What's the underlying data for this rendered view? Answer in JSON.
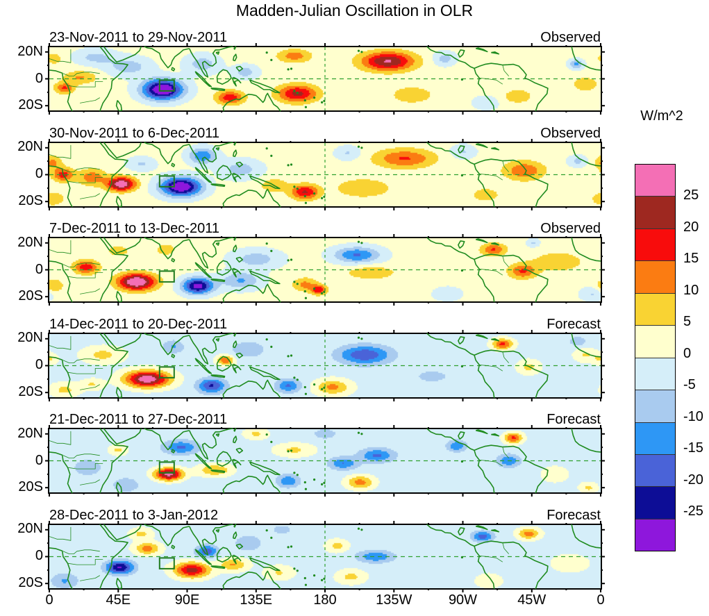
{
  "title": "Madden-Julian Oscillation in OLR",
  "colorbar": {
    "label": "W/m^2",
    "tick_labels": [
      "25",
      "20",
      "15",
      "10",
      "5",
      "0",
      "-5",
      "-10",
      "-15",
      "-20",
      "-25"
    ],
    "palette_low_to_high": [
      "#8E17DC",
      "#0D0D96",
      "#4A63D8",
      "#2E97F5",
      "#A9CBEF",
      "#D5EEF9",
      "#FFFFCE",
      "#F9D333",
      "#FB7C12",
      "#F80C0C",
      "#9E2820",
      "#F46FB5"
    ],
    "level_step": 5
  },
  "axes": {
    "x_tick_labels": [
      "0",
      "45E",
      "90E",
      "135E",
      "180",
      "135W",
      "90W",
      "45W",
      "0"
    ],
    "x_tick_lons": [
      0,
      45,
      90,
      135,
      180,
      225,
      270,
      315,
      360
    ],
    "y_tick_labels": [
      "20N",
      "0",
      "20S"
    ],
    "y_tick_lats": [
      20,
      0,
      -20
    ]
  },
  "map": {
    "coast_color": "#1F8B1F",
    "grid_color": "#2FA02F",
    "region_box": {
      "lon_min": 72,
      "lon_max": 81.5,
      "lat_min": -9,
      "lat_max": -1
    }
  },
  "chart_data": {
    "type": "heatmap",
    "units": "W/m^2",
    "lon_range": [
      0,
      360
    ],
    "lat_range": [
      -23.5,
      23.5
    ],
    "levels": [
      -25,
      -20,
      -15,
      -10,
      -5,
      0,
      5,
      10,
      15,
      20,
      25
    ],
    "anomaly_format": "lon_degE, lat_degN, peak_W_per_m2, rx_deg, ry_deg",
    "panels": [
      {
        "date_range": "23-Nov-2011 to 29-Nov-2011",
        "source": "Observed",
        "base": 1.5,
        "anomalies": [
          [
            74,
            -8,
            -34,
            13,
            7.5
          ],
          [
            52,
            9,
            -9,
            14,
            7
          ],
          [
            100,
            11,
            -9,
            11,
            7
          ],
          [
            128,
            5,
            -9,
            8,
            5
          ],
          [
            118,
            -14,
            17,
            9,
            5
          ],
          [
            162,
            -11,
            20,
            13,
            6.5
          ],
          [
            160,
            17,
            11,
            11,
            5
          ],
          [
            221,
            13,
            24,
            17,
            7
          ],
          [
            237,
            -12,
            8,
            13,
            6
          ],
          [
            10,
            -7,
            14,
            6,
            4
          ],
          [
            20,
            1,
            9,
            11,
            5
          ],
          [
            3,
            15,
            8,
            5,
            4
          ],
          [
            30,
            16,
            -8,
            13,
            6
          ],
          [
            258,
            15,
            -9,
            7,
            5
          ],
          [
            306,
            -13,
            8,
            9,
            5
          ],
          [
            344,
            11,
            -13,
            4.5,
            3.5
          ],
          [
            350,
            -4,
            8,
            8,
            5
          ],
          [
            285,
            -18,
            -6,
            8,
            5
          ]
        ]
      },
      {
        "date_range": "30-Nov-2011 to 6-Dec-2011",
        "source": "Observed",
        "base": 1.5,
        "anomalies": [
          [
            47,
            -7,
            29,
            9,
            5
          ],
          [
            28,
            -2,
            12,
            9,
            6
          ],
          [
            9,
            0,
            16,
            7,
            5
          ],
          [
            2,
            9,
            10,
            6,
            5
          ],
          [
            2,
            -18,
            8,
            8,
            5
          ],
          [
            86,
            -9,
            -33,
            13,
            7
          ],
          [
            100,
            14,
            -16,
            9,
            6
          ],
          [
            125,
            4,
            -9,
            13,
            7
          ],
          [
            167,
            -13,
            19,
            9,
            5.5
          ],
          [
            147,
            -8,
            8,
            9,
            5
          ],
          [
            232,
            12,
            14,
            19,
            7
          ],
          [
            205,
            -10,
            8,
            18,
            7
          ],
          [
            310,
            3,
            13,
            13,
            7
          ],
          [
            270,
            17,
            -7,
            8,
            5
          ],
          [
            195,
            16,
            -7,
            8,
            5
          ],
          [
            345,
            10,
            -8,
            6,
            4
          ],
          [
            285,
            -15,
            7,
            9,
            5
          ],
          [
            60,
            8,
            -7,
            9,
            5
          ]
        ]
      },
      {
        "date_range": "7-Dec-2011 to 13-Dec-2011",
        "source": "Observed",
        "base": 1.5,
        "anomalies": [
          [
            57,
            -9,
            31,
            12,
            6
          ],
          [
            24,
            2,
            17,
            8,
            5
          ],
          [
            3,
            -12,
            9,
            6,
            5
          ],
          [
            76,
            15,
            8,
            6,
            4
          ],
          [
            97,
            -12,
            -29,
            10,
            6
          ],
          [
            125,
            -8,
            -12,
            13,
            6.5
          ],
          [
            135,
            8,
            -9,
            16,
            7
          ],
          [
            176,
            -15,
            17,
            5,
            3.5
          ],
          [
            167,
            -11,
            10,
            8,
            5
          ],
          [
            201,
            11,
            -17,
            15,
            6
          ],
          [
            210,
            -2,
            8,
            16,
            5
          ],
          [
            290,
            15,
            14,
            8,
            4.5
          ],
          [
            309,
            -1,
            14,
            9,
            5.5
          ],
          [
            332,
            6,
            8,
            16,
            7
          ],
          [
            355,
            -18,
            -7,
            8,
            5
          ],
          [
            260,
            -18,
            -6,
            9,
            5
          ],
          [
            316,
            20,
            -7,
            4,
            3
          ],
          [
            45,
            14,
            7,
            7,
            4
          ]
        ]
      },
      {
        "date_range": "14-Dec-2011 to 20-Dec-2011",
        "source": "Forecast",
        "base": -1.5,
        "anomalies": [
          [
            64,
            -10,
            31,
            14,
            6
          ],
          [
            106,
            -15,
            -19,
            9,
            5.5
          ],
          [
            115,
            4,
            16,
            5.5,
            3.5
          ],
          [
            81,
            14,
            -9,
            7,
            5
          ],
          [
            130,
            12,
            -8,
            11,
            6
          ],
          [
            156,
            -15,
            -14,
            8,
            5
          ],
          [
            206,
            8,
            -18,
            17,
            7
          ],
          [
            185,
            -16,
            13,
            11,
            5.5
          ],
          [
            296,
            16,
            18,
            6.5,
            4
          ],
          [
            313,
            -1,
            8,
            7,
            5
          ],
          [
            35,
            8,
            8,
            13,
            6
          ],
          [
            10,
            -18,
            8,
            9,
            5
          ],
          [
            250,
            -8,
            -5,
            14,
            6
          ],
          [
            350,
            8,
            7,
            7,
            5
          ],
          [
            345,
            18,
            -7,
            6,
            4
          ],
          [
            28,
            -14,
            7,
            7,
            4
          ],
          [
            0,
            5,
            7,
            5,
            4
          ]
        ]
      },
      {
        "date_range": "21-Dec-2011 to 27-Dec-2011",
        "source": "Forecast",
        "base": -2,
        "anomalies": [
          [
            78,
            -10,
            29,
            9,
            4.5
          ],
          [
            108,
            -7,
            12,
            11,
            4.5
          ],
          [
            86,
            10,
            -14,
            11,
            5
          ],
          [
            45,
            8,
            8,
            6,
            4
          ],
          [
            25,
            -5,
            -7,
            9,
            6
          ],
          [
            50,
            -18,
            -8,
            8,
            5
          ],
          [
            156,
            -15,
            -13,
            7,
            4.5
          ],
          [
            160,
            8,
            8,
            13,
            5
          ],
          [
            192,
            -2,
            -13,
            9,
            4.5
          ],
          [
            214,
            4,
            -14,
            11,
            5
          ],
          [
            203,
            -16,
            14,
            9,
            5
          ],
          [
            266,
            11,
            -13,
            6,
            4
          ],
          [
            300,
            0,
            -13,
            7,
            4.5
          ],
          [
            303,
            17,
            18,
            6,
            4
          ],
          [
            330,
            -10,
            6,
            9,
            6
          ],
          [
            352,
            -20,
            8,
            6,
            4
          ],
          [
            135,
            20,
            8,
            8,
            4
          ],
          [
            180,
            20,
            -6,
            8,
            4
          ]
        ]
      },
      {
        "date_range": "28-Dec-2011 to 3-Jan-2012",
        "source": "Forecast",
        "base": -1.5,
        "anomalies": [
          [
            93,
            -10,
            24,
            11,
            5.5
          ],
          [
            120,
            -6,
            12,
            9,
            4.5
          ],
          [
            64,
            6,
            14,
            8,
            4.5
          ],
          [
            46,
            -8,
            -24,
            9,
            5
          ],
          [
            10,
            -18,
            -9,
            9,
            6
          ],
          [
            103,
            4,
            -17,
            7,
            4.5
          ],
          [
            130,
            10,
            -8,
            9,
            6
          ],
          [
            150,
            -12,
            7,
            9,
            5
          ],
          [
            188,
            8,
            8,
            7,
            4.5
          ],
          [
            213,
            0,
            -13,
            12,
            4.5
          ],
          [
            283,
            15,
            -16,
            7,
            4
          ],
          [
            313,
            17,
            14,
            7,
            4
          ],
          [
            197,
            -15,
            8,
            9,
            5
          ],
          [
            340,
            -5,
            6,
            11,
            6
          ],
          [
            60,
            17,
            8,
            7,
            4
          ],
          [
            152,
            20,
            -6,
            7,
            4
          ],
          [
            287,
            -18,
            6,
            8,
            5
          ]
        ]
      }
    ]
  }
}
